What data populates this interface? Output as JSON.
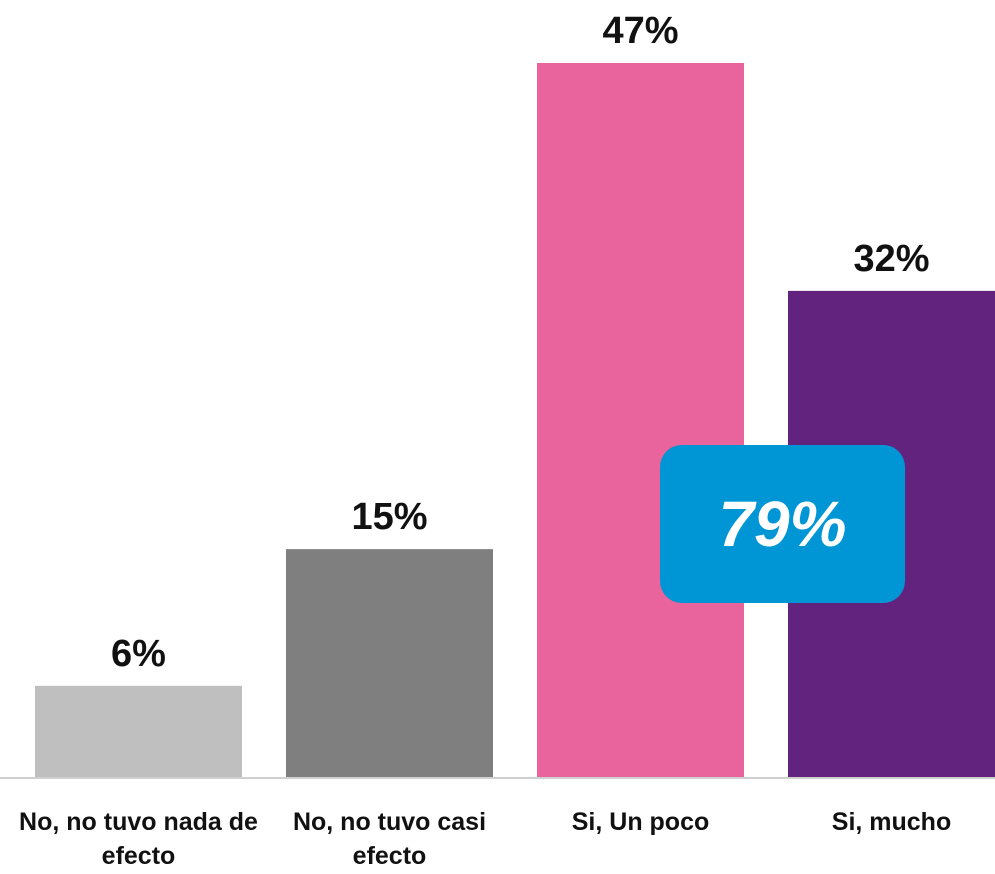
{
  "chart_data": {
    "type": "bar",
    "categories": [
      "No, no tuvo nada de efecto",
      "No, no tuvo casi efecto",
      "Si, Un poco",
      "Si, mucho"
    ],
    "values": [
      6,
      15,
      47,
      32
    ],
    "value_labels": [
      "6%",
      "15%",
      "47%",
      "32%"
    ],
    "colors": [
      "#bfbfbf",
      "#7f7f7f",
      "#e9639c",
      "#62237f"
    ],
    "annotation": "79%"
  }
}
